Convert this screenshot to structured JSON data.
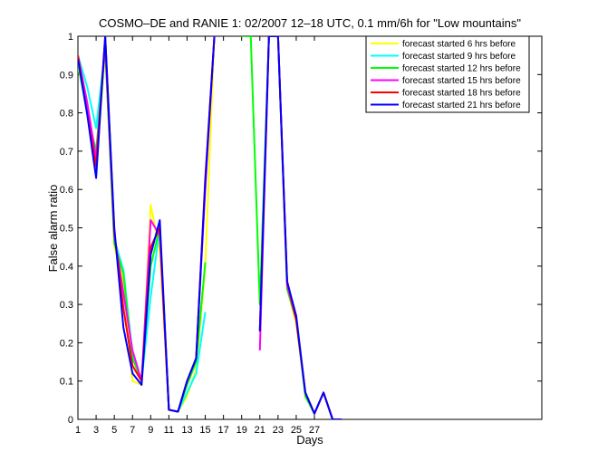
{
  "chart_data": {
    "type": "line",
    "title": "COSMO–DE and RANIE 1: 02/2007 12–18 UTC, 0.1 mm/6h for \"Low mountains\"",
    "xlabel": "Days",
    "ylabel": "False alarm ratio",
    "xlim": [
      1,
      52
    ],
    "ylim": [
      0,
      1
    ],
    "x_ticks": [
      1,
      3,
      5,
      7,
      9,
      11,
      13,
      15,
      17,
      19,
      21,
      23,
      25,
      27
    ],
    "y_ticks": [
      0,
      0.1,
      0.2,
      0.3,
      0.4,
      0.5,
      0.6,
      0.7,
      0.8,
      0.9,
      1
    ],
    "y_tick_labels": [
      "0",
      "0.1",
      "0.2",
      "0.3",
      "0.4",
      "0.5",
      "0.6",
      "0.7",
      "0.8",
      "0.9",
      "1"
    ],
    "legend_position": "top-right",
    "grid": false,
    "series": [
      {
        "name": "forecast started 6 hrs before",
        "color": "#ffff00",
        "values": [
          0.92,
          0.82,
          0.65,
          0.96,
          0.45,
          0.36,
          0.1,
          0.09,
          0.56,
          0.44,
          0.025,
          0.02,
          0.06,
          0.13,
          0.4,
          1.0,
          null,
          null,
          1.0,
          1.0,
          null,
          1.0,
          1.0,
          0.34,
          0.25,
          0.07,
          0.015,
          0.07,
          0.0,
          0.0
        ]
      },
      {
        "name": "forecast started 9 hrs before",
        "color": "#00ffff",
        "values": [
          0.95,
          0.87,
          0.76,
          0.97,
          0.47,
          0.39,
          0.17,
          0.1,
          0.32,
          0.5,
          0.025,
          0.02,
          0.07,
          0.12,
          0.28,
          null,
          null,
          null,
          null,
          null,
          null,
          null,
          null,
          null,
          null,
          null,
          null,
          null,
          null,
          null
        ]
      },
      {
        "name": "forecast started 12 hrs before",
        "color": "#00ff00",
        "values": [
          0.93,
          0.8,
          0.7,
          0.97,
          0.46,
          0.38,
          0.16,
          0.1,
          0.4,
          0.5,
          0.025,
          0.02,
          0.09,
          0.15,
          0.41,
          null,
          null,
          null,
          1.0,
          1.0,
          0.3,
          1.0,
          1.0,
          0.34,
          0.26,
          0.06,
          0.015,
          0.07,
          0.0,
          0.0
        ]
      },
      {
        "name": "forecast started 15 hrs before",
        "color": "#ff00ff",
        "values": [
          0.95,
          0.83,
          0.68,
          0.98,
          0.48,
          0.33,
          0.18,
          0.1,
          0.52,
          0.48,
          0.025,
          0.02,
          0.1,
          0.16,
          0.6,
          1.0,
          null,
          null,
          null,
          null,
          0.18,
          1.0,
          1.0,
          0.35,
          0.26,
          0.07,
          0.015,
          0.07,
          0.0,
          0.0
        ]
      },
      {
        "name": "forecast started 18 hrs before",
        "color": "#ff0000",
        "values": [
          0.95,
          0.8,
          0.66,
          1.0,
          0.49,
          0.29,
          0.14,
          0.1,
          0.45,
          0.5,
          0.025,
          0.02,
          0.1,
          0.16,
          0.63,
          1.0,
          null,
          null,
          null,
          null,
          0.23,
          1.0,
          1.0,
          0.36,
          0.26,
          0.07,
          0.015,
          0.07,
          0.0,
          0.0
        ]
      },
      {
        "name": "forecast started 21 hrs before",
        "color": "#0000ff",
        "values": [
          0.94,
          0.8,
          0.63,
          1.0,
          0.5,
          0.24,
          0.12,
          0.09,
          0.43,
          0.52,
          0.025,
          0.02,
          0.1,
          0.16,
          0.62,
          1.0,
          null,
          null,
          null,
          null,
          0.23,
          1.0,
          1.0,
          0.36,
          0.27,
          0.07,
          0.015,
          0.07,
          0.0,
          0.0
        ]
      }
    ]
  }
}
